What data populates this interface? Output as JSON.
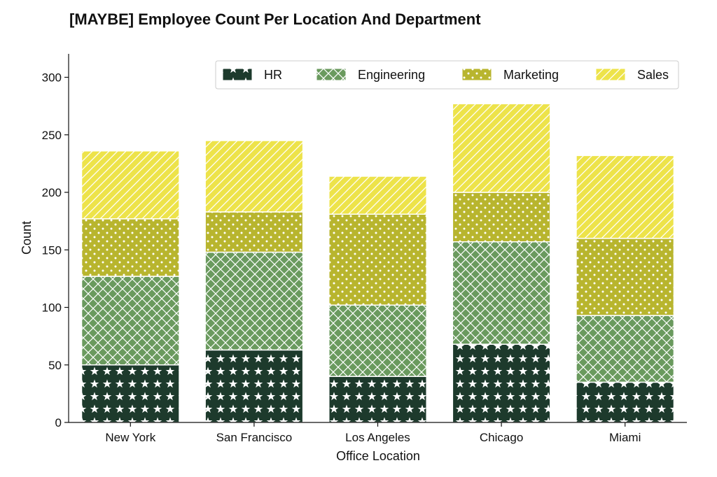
{
  "chart_data": {
    "type": "bar",
    "stacked": true,
    "title": "[MAYBE] Employee Count Per Location And Department",
    "xlabel": "Office Location",
    "ylabel": "Count",
    "categories": [
      "New York",
      "San Francisco",
      "Los Angeles",
      "Chicago",
      "Miami"
    ],
    "series": [
      {
        "name": "HR",
        "values": [
          50,
          63,
          40,
          68,
          35
        ],
        "color": "#1d3a2c",
        "pattern": "stars"
      },
      {
        "name": "Engineering",
        "values": [
          77,
          85,
          62,
          89,
          58
        ],
        "color": "#6a9a5e",
        "pattern": "crosshatch"
      },
      {
        "name": "Marketing",
        "values": [
          50,
          35,
          79,
          43,
          67
        ],
        "color": "#b8b52e",
        "pattern": "dots"
      },
      {
        "name": "Sales",
        "values": [
          59,
          62,
          33,
          77,
          72
        ],
        "color": "#ede34a",
        "pattern": "diagonal"
      }
    ],
    "ylim": [
      0,
      320
    ],
    "yticks": [
      0,
      50,
      100,
      150,
      200,
      250,
      300
    ],
    "grid": false,
    "legend_position": "top-right"
  }
}
